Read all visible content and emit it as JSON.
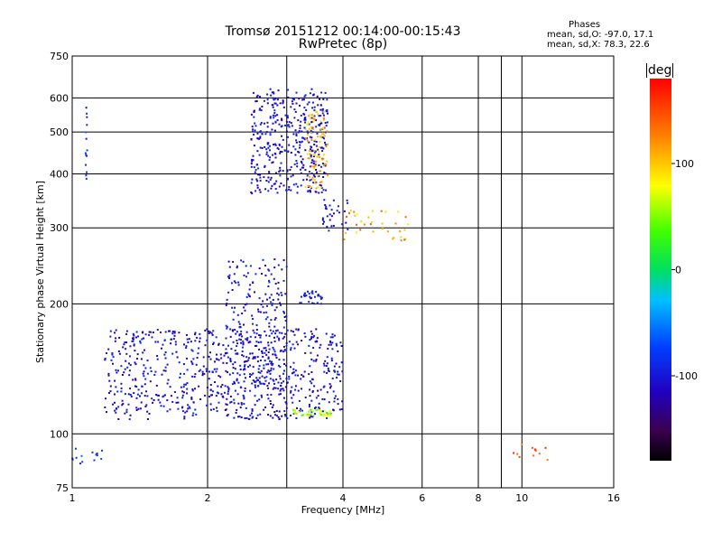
{
  "header": {
    "title_line1": "Tromsø 20151212 00:14:00-00:15:43",
    "title_line2": "RwPretec (8p)"
  },
  "stats": {
    "heading": "Phases",
    "line1": "mean, sd,O: -97.0, 17.1",
    "line2": "mean, sd,X:  78.3, 22.6"
  },
  "colorbar": {
    "label": "deg",
    "range": [
      -180,
      180
    ],
    "ticks": [
      100,
      0,
      -100
    ]
  },
  "chart_data": {
    "type": "scatter",
    "title": "Tromsø 20151212 00:14:00-00:15:43",
    "subtitle": "RwPretec (8p)",
    "xlabel": "Frequency [MHz]",
    "ylabel": "Stationary phase Virtual Height [km]",
    "xscale": "log",
    "yscale": "log",
    "xlim": [
      1,
      16
    ],
    "ylim": [
      75,
      750
    ],
    "xticks": [
      1,
      2,
      4,
      6,
      8,
      10,
      16
    ],
    "yticks": [
      75,
      100,
      200,
      300,
      400,
      500,
      600,
      750
    ],
    "xgrid": [
      2,
      3,
      4,
      6,
      8,
      9,
      10
    ],
    "ygrid": [
      100,
      200,
      300,
      400,
      500,
      600
    ],
    "clusters": [
      {
        "name": "",
        "x": [
          2.5,
          3.7
        ],
        "y": [
          360,
          630
        ],
        "phase_range": [
          -125,
          -85
        ],
        "count": 420
      },
      {
        "name": "",
        "x": [
          3.3,
          3.7
        ],
        "y": [
          370,
          560
        ],
        "phase_range": [
          80,
          130
        ],
        "count": 90
      },
      {
        "name": "",
        "x": [
          1.18,
          4.0
        ],
        "y": [
          108,
          175
        ],
        "phase_range": [
          -125,
          -85
        ],
        "count": 750
      },
      {
        "name": "",
        "x": [
          2.2,
          3.0
        ],
        "y": [
          125,
          255
        ],
        "phase_range": [
          -125,
          -80
        ],
        "count": 240
      },
      {
        "name": "",
        "x": [
          3.2,
          3.6
        ],
        "y": [
          200,
          215
        ],
        "phase_range": [
          -110,
          -80
        ],
        "count": 30
      },
      {
        "name": "",
        "x": [
          3.1,
          3.8
        ],
        "y": [
          110,
          114
        ],
        "phase_range": [
          30,
          90
        ],
        "count": 40
      },
      {
        "name": "",
        "x": [
          3.6,
          4.1
        ],
        "y": [
          290,
          350
        ],
        "phase_range": [
          -120,
          -90
        ],
        "count": 30
      },
      {
        "name": "",
        "x": [
          4.0,
          5.7
        ],
        "y": [
          280,
          330
        ],
        "phase_range": [
          60,
          150
        ],
        "count": 35
      },
      {
        "name": "",
        "x": [
          1.07,
          1.08
        ],
        "y": [
          380,
          610
        ],
        "phase_range": [
          -110,
          -60
        ],
        "count": 14
      },
      {
        "name": "",
        "x": [
          1.0,
          1.2
        ],
        "y": [
          85,
          95
        ],
        "phase_range": [
          -110,
          -60
        ],
        "count": 14
      },
      {
        "name": "",
        "x": [
          9.5,
          12.0
        ],
        "y": [
          85,
          95
        ],
        "phase_range": [
          120,
          170
        ],
        "count": 12
      }
    ]
  }
}
